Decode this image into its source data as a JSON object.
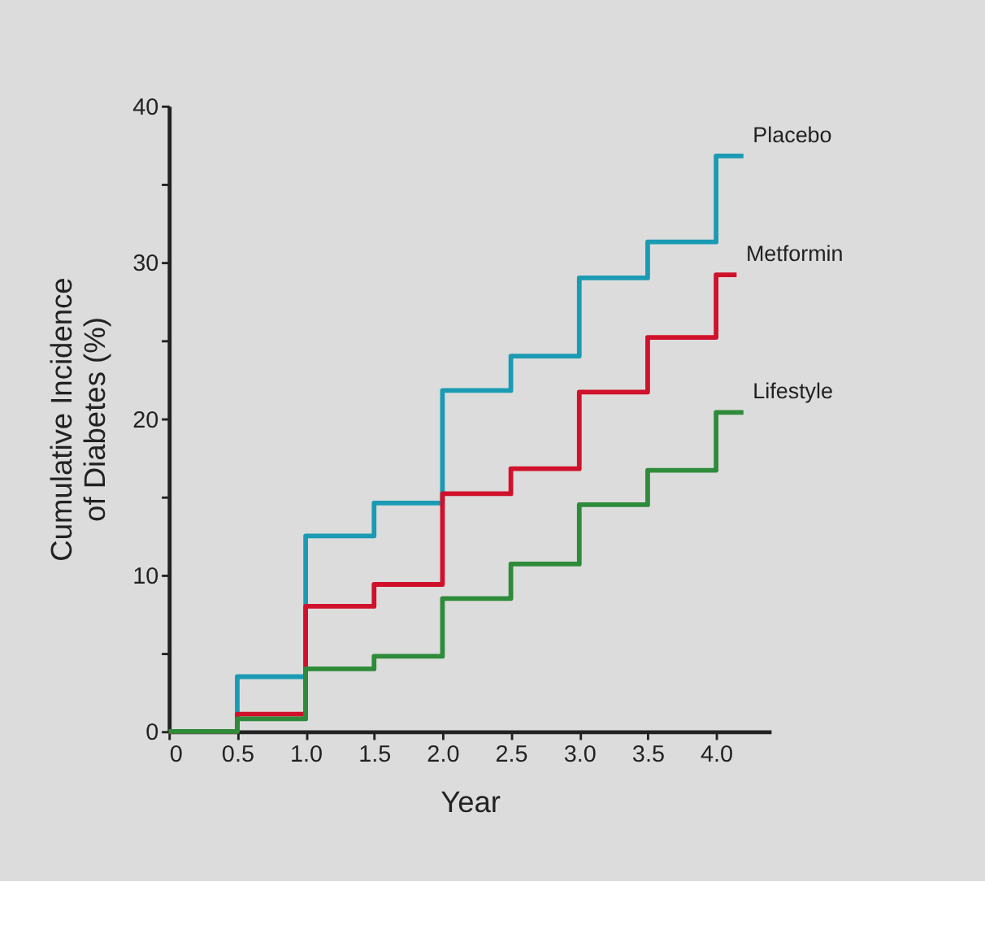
{
  "chart_data": {
    "type": "step",
    "xlabel": "Year",
    "ylabel": "Cumulative Incidence\nof Diabetes (%)",
    "xlim": [
      0,
      4.4
    ],
    "ylim": [
      0,
      40
    ],
    "xticks": [
      0,
      0.5,
      {
        "value": 1,
        "label": "1.0"
      },
      1.5,
      {
        "value": 2,
        "label": "2.0"
      },
      2.5,
      {
        "value": 3,
        "label": "3.0"
      },
      3.5,
      {
        "value": 4,
        "label": "4.0"
      }
    ],
    "yticks": [
      0,
      {
        "value": 5,
        "label": null
      },
      10,
      {
        "value": 15,
        "label": null
      },
      20,
      {
        "value": 25,
        "label": null
      },
      30,
      {
        "value": 35,
        "label": null
      },
      40
    ],
    "legend": false,
    "marker": "none",
    "line_style": "solid",
    "series": [
      {
        "name": "Placebo",
        "color": "#1a9bb3",
        "x": [
          0,
          0.5,
          1,
          1.5,
          2,
          2.5,
          3,
          3.5,
          4,
          4.2
        ],
        "values": [
          0,
          3.5,
          12.5,
          14.6,
          21.8,
          24,
          29,
          31.3,
          36.8,
          36.8
        ]
      },
      {
        "name": "Metformin",
        "color": "#d0112b",
        "x": [
          0,
          0.5,
          1,
          1.5,
          2,
          2.5,
          3,
          3.5,
          4,
          4.15
        ],
        "values": [
          0,
          1.1,
          8,
          9.4,
          15.2,
          16.8,
          21.7,
          25.2,
          29.2,
          29.2
        ]
      },
      {
        "name": "Lifestyle",
        "color": "#2e8b3a",
        "x": [
          0,
          0.5,
          1,
          1.5,
          2,
          2.5,
          3,
          3.5,
          4,
          4.2
        ],
        "values": [
          0,
          0.8,
          4,
          4.8,
          8.5,
          10.7,
          14.5,
          16.7,
          20.4,
          20.4
        ]
      }
    ]
  }
}
